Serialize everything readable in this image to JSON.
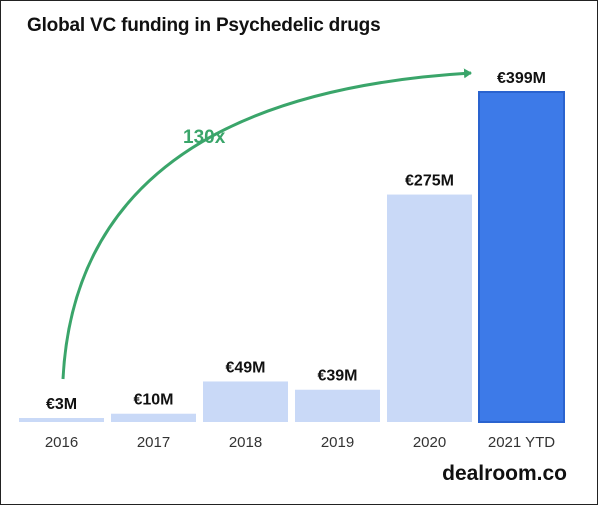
{
  "title": "Global VC funding in Psychedelic drugs",
  "brand": "dealroom.co",
  "growth_label": "130x",
  "colors": {
    "bar": "#c9d9f7",
    "highlight_bar": "#3d7ae8",
    "arrow": "#3aa56a",
    "text": "#111111"
  },
  "chart_data": {
    "type": "bar",
    "title": "Global VC funding in Psychedelic drugs",
    "categories": [
      "2016",
      "2017",
      "2018",
      "2019",
      "2020",
      "2021 YTD"
    ],
    "values": [
      3,
      10,
      49,
      39,
      275,
      399
    ],
    "value_labels": [
      "€3M",
      "€10M",
      "€49M",
      "€39M",
      "€275M",
      "€399M"
    ],
    "highlight_index": 5,
    "unit": "€M",
    "ylim": [
      0,
      399
    ],
    "grid": false,
    "annotation": "130x"
  }
}
